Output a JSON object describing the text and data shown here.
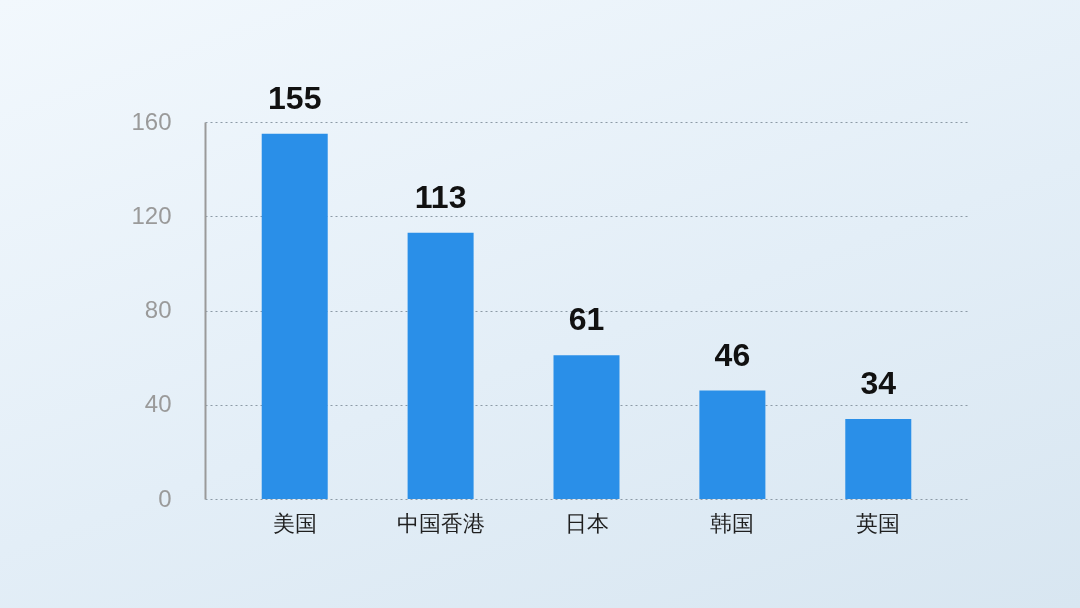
{
  "chart_data": {
    "type": "bar",
    "categories": [
      "美国",
      "中国香港",
      "日本",
      "韩国",
      "英国"
    ],
    "values": [
      155,
      113,
      61,
      46,
      34
    ],
    "color": "#2a8fe8",
    "ylim": [
      0,
      160
    ],
    "yticks": [
      0,
      40,
      80,
      120,
      160
    ],
    "grid": "y",
    "data_labels": true
  }
}
